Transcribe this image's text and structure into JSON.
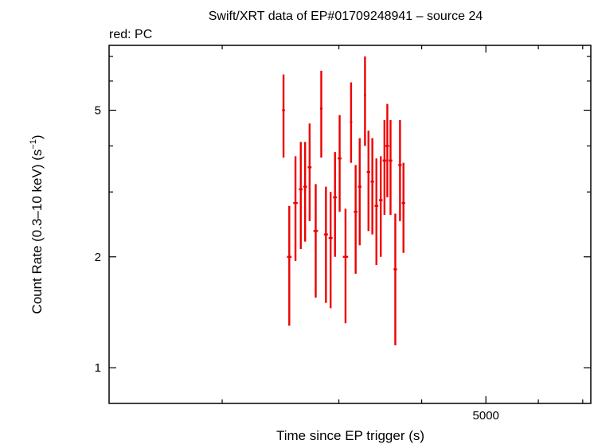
{
  "chart_data": {
    "type": "scatter",
    "title": "Swift/XRT data of EP#01709248941 – source 24",
    "subtitle": "red: PC",
    "xlabel": "Time since EP trigger (s)",
    "ylabel_main": "Count Rate (0.3–10 keV) (s",
    "ylabel_sup": "−1",
    "ylabel_end": ")",
    "x_scale": "log",
    "y_scale": "log",
    "xlim": [
      1350,
      7200
    ],
    "ylim": [
      0.8,
      7.5
    ],
    "x_ticks": [
      {
        "value": 5000,
        "label": "5000"
      }
    ],
    "x_minor_ticks": [
      2000,
      3000,
      4000,
      6000,
      7000
    ],
    "y_ticks": [
      {
        "value": 1,
        "label": "1"
      },
      {
        "value": 2,
        "label": "2"
      },
      {
        "value": 5,
        "label": "5"
      }
    ],
    "y_minor_ticks": [
      3,
      4,
      6,
      7
    ],
    "grid": false,
    "series": [
      {
        "color": "#ee0000",
        "points": [
          {
            "x": 2475,
            "xerr": 12,
            "y": 5.0,
            "ylo": 3.72,
            "yhi": 6.25
          },
          {
            "x": 2525,
            "xerr": 20,
            "y": 2.0,
            "ylo": 1.3,
            "yhi": 2.75
          },
          {
            "x": 2580,
            "xerr": 20,
            "y": 2.8,
            "ylo": 1.95,
            "yhi": 3.75
          },
          {
            "x": 2628,
            "xerr": 18,
            "y": 3.05,
            "ylo": 2.1,
            "yhi": 4.1
          },
          {
            "x": 2668,
            "xerr": 18,
            "y": 3.1,
            "ylo": 2.2,
            "yhi": 4.1
          },
          {
            "x": 2710,
            "xerr": 18,
            "y": 3.5,
            "ylo": 2.5,
            "yhi": 4.6
          },
          {
            "x": 2768,
            "xerr": 22,
            "y": 2.35,
            "ylo": 1.55,
            "yhi": 3.15
          },
          {
            "x": 2822,
            "xerr": 12,
            "y": 5.05,
            "ylo": 3.72,
            "yhi": 6.4
          },
          {
            "x": 2868,
            "xerr": 20,
            "y": 2.3,
            "ylo": 1.5,
            "yhi": 3.1
          },
          {
            "x": 2915,
            "xerr": 20,
            "y": 2.25,
            "ylo": 1.45,
            "yhi": 3.0
          },
          {
            "x": 2960,
            "xerr": 20,
            "y": 2.9,
            "ylo": 2.0,
            "yhi": 3.85
          },
          {
            "x": 3008,
            "xerr": 20,
            "y": 3.7,
            "ylo": 2.65,
            "yhi": 4.85
          },
          {
            "x": 3070,
            "xerr": 28,
            "y": 2.0,
            "ylo": 1.32,
            "yhi": 2.7
          },
          {
            "x": 3130,
            "xerr": 12,
            "y": 4.65,
            "ylo": 3.6,
            "yhi": 5.95
          },
          {
            "x": 3180,
            "xerr": 20,
            "y": 2.65,
            "ylo": 1.8,
            "yhi": 3.55
          },
          {
            "x": 3225,
            "xerr": 20,
            "y": 3.1,
            "ylo": 2.15,
            "yhi": 4.2
          },
          {
            "x": 3285,
            "xerr": 12,
            "y": 5.5,
            "ylo": 4.0,
            "yhi": 7.0
          },
          {
            "x": 3325,
            "xerr": 20,
            "y": 3.4,
            "ylo": 2.35,
            "yhi": 4.4
          },
          {
            "x": 3370,
            "xerr": 20,
            "y": 3.2,
            "ylo": 2.3,
            "yhi": 4.2
          },
          {
            "x": 3418,
            "xerr": 22,
            "y": 2.75,
            "ylo": 1.9,
            "yhi": 3.7
          },
          {
            "x": 3470,
            "xerr": 22,
            "y": 2.85,
            "ylo": 2.0,
            "yhi": 3.75
          },
          {
            "x": 3515,
            "xerr": 22,
            "y": 3.65,
            "ylo": 2.6,
            "yhi": 4.7
          },
          {
            "x": 3550,
            "xerr": 22,
            "y": 4.0,
            "ylo": 2.9,
            "yhi": 5.2
          },
          {
            "x": 3590,
            "xerr": 22,
            "y": 3.65,
            "ylo": 2.6,
            "yhi": 4.7
          },
          {
            "x": 3650,
            "xerr": 22,
            "y": 1.85,
            "ylo": 1.15,
            "yhi": 2.62
          },
          {
            "x": 3710,
            "xerr": 22,
            "y": 3.55,
            "ylo": 2.5,
            "yhi": 4.7
          },
          {
            "x": 3755,
            "xerr": 22,
            "y": 2.8,
            "ylo": 2.05,
            "yhi": 3.6
          }
        ]
      }
    ]
  }
}
